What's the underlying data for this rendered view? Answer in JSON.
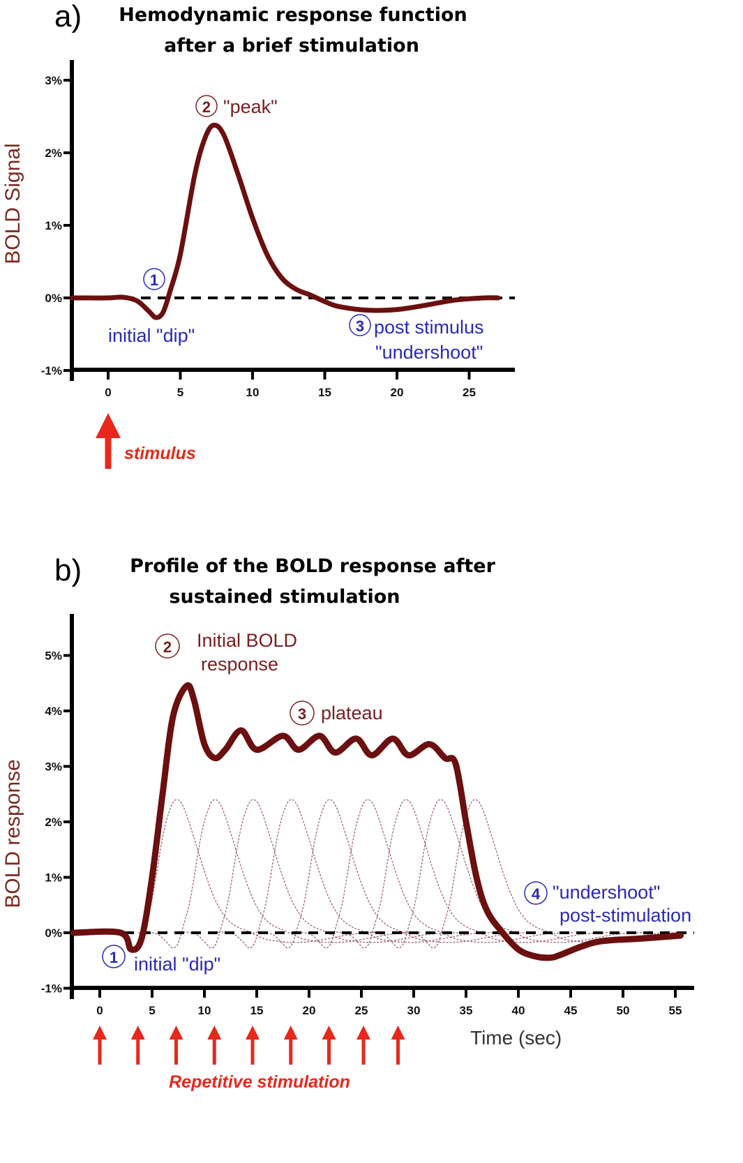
{
  "chart_data": [
    {
      "type": "line",
      "panel_label": "a)",
      "title": [
        "Hemodynamic response function",
        "after a brief stimulation"
      ],
      "ylabel": "BOLD Signal",
      "xlabel": "",
      "xlim": [
        -2.5,
        28
      ],
      "ylim": [
        -1,
        3.3
      ],
      "xticks": [
        0,
        5,
        10,
        15,
        20,
        25
      ],
      "yticks": [
        {
          "v": 3,
          "label": "3%"
        },
        {
          "v": 2,
          "label": "2%"
        },
        {
          "v": 1,
          "label": "1%"
        },
        {
          "v": 0,
          "label": "0%"
        },
        {
          "v": -1,
          "label": "-1%"
        }
      ],
      "series": [
        {
          "name": "HRF",
          "color": "#6b0f0f",
          "x": [
            -2.5,
            0,
            1,
            2,
            2.8,
            3.3,
            3.8,
            4.3,
            5,
            6,
            6.7,
            7.3,
            8,
            9,
            10,
            11,
            12,
            13,
            14,
            15,
            16,
            18,
            20,
            22,
            24,
            26,
            27
          ],
          "y": [
            0,
            0,
            0.01,
            -0.04,
            -0.18,
            -0.27,
            -0.2,
            0.1,
            0.6,
            1.7,
            2.2,
            2.38,
            2.25,
            1.7,
            1.1,
            0.6,
            0.28,
            0.12,
            0.04,
            -0.05,
            -0.12,
            -0.17,
            -0.16,
            -0.1,
            -0.03,
            0,
            0
          ]
        }
      ],
      "baseline": 0,
      "annotations": [
        {
          "num": "1",
          "text": [
            "initial \"dip\""
          ],
          "color": "#2a2ab8"
        },
        {
          "num": "2",
          "text": [
            "\"peak\""
          ],
          "color": "#7a2020"
        },
        {
          "num": "3",
          "text": [
            "post stimulus",
            "\"undershoot\""
          ],
          "color": "#2a2ab8"
        }
      ],
      "stimulus_label": "stimulus",
      "stimulus_times": [
        0
      ]
    },
    {
      "type": "line",
      "panel_label": "b)",
      "title": [
        "Profile of the BOLD response after",
        "sustained stimulation"
      ],
      "ylabel": "BOLD response",
      "xlabel": "Time (sec)",
      "xlim": [
        -2.5,
        56
      ],
      "ylim": [
        -1,
        5.7
      ],
      "xticks": [
        0,
        5,
        10,
        15,
        20,
        25,
        30,
        35,
        40,
        45,
        50,
        55
      ],
      "yticks": [
        {
          "v": 5,
          "label": "5%"
        },
        {
          "v": 4,
          "label": "4%"
        },
        {
          "v": 3,
          "label": "3%"
        },
        {
          "v": 2,
          "label": "2%"
        },
        {
          "v": 1,
          "label": "1%"
        },
        {
          "v": 0,
          "label": "0%"
        },
        {
          "v": -1,
          "label": "-1%"
        }
      ],
      "series": [
        {
          "name": "Summed BOLD response",
          "color": "#6b0f0f",
          "x": [
            -2.5,
            2,
            3,
            4,
            5,
            6,
            7,
            8.3,
            9,
            10,
            11,
            12,
            13.5,
            15,
            17.5,
            19,
            21,
            22.5,
            24.5,
            26,
            28,
            29.5,
            31.5,
            33,
            34,
            35,
            36,
            37,
            38.5,
            40,
            41.5,
            43,
            44,
            46,
            48,
            52,
            55.5
          ],
          "y": [
            0,
            0,
            -0.3,
            -0.1,
            1,
            2.5,
            3.9,
            4.45,
            4.2,
            3.4,
            3.15,
            3.3,
            3.65,
            3.3,
            3.55,
            3.3,
            3.55,
            3.25,
            3.5,
            3.2,
            3.5,
            3.2,
            3.4,
            3.15,
            3.05,
            2,
            1,
            0.4,
            0,
            -0.3,
            -0.42,
            -0.45,
            -0.4,
            -0.25,
            -0.15,
            -0.1,
            -0.05
          ]
        }
      ],
      "individual_hrf_peak": 2.4,
      "baseline": 0,
      "annotations": [
        {
          "num": "1",
          "text": [
            "initial \"dip\""
          ],
          "color": "#2a2ab8"
        },
        {
          "num": "2",
          "text": [
            "Initial BOLD",
            "response"
          ],
          "color": "#7a2020"
        },
        {
          "num": "3",
          "text": [
            "plateau"
          ],
          "color": "#7a2020"
        },
        {
          "num": "4",
          "text": [
            "\"undershoot\"",
            "post-stimulation"
          ],
          "color": "#2a2ab8"
        }
      ],
      "stimulus_label": "Repetitive stimulation",
      "stimulus_times": [
        0,
        3.65,
        7.3,
        10.95,
        14.6,
        18.25,
        21.9,
        25.2,
        28.5
      ]
    }
  ]
}
